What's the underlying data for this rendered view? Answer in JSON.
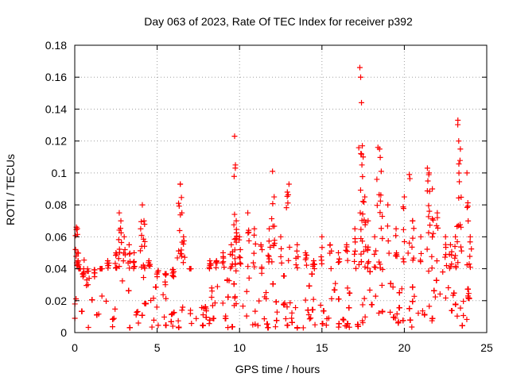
{
  "chart_data": {
    "type": "scatter",
    "title": "Day 063 of 2023, Rate Of TEC Index for receiver p392",
    "xlabel": "GPS time / hours",
    "ylabel": "ROTI / TECUs",
    "xlim": [
      0,
      25
    ],
    "ylim": [
      0,
      0.18
    ],
    "x_ticks": [
      "0",
      "5",
      "10",
      "15",
      "20",
      "25"
    ],
    "y_ticks": [
      "0",
      "0.02",
      "0.04",
      "0.06",
      "0.08",
      "0.1",
      "0.12",
      "0.14",
      "0.16",
      "0.18"
    ],
    "grid": true,
    "marker": "+",
    "color": "#ff0000",
    "series": [
      {
        "name": "ROTI",
        "x": [
          0.1,
          0.15,
          0.2,
          0.3,
          0.5,
          0.8,
          1.2,
          1.6,
          2.0,
          2.5,
          2.7,
          2.8,
          3.0,
          3.3,
          3.6,
          4.0,
          4.1,
          4.2,
          4.5,
          5.0,
          5.5,
          6.0,
          6.3,
          6.4,
          6.5,
          6.6,
          7.0,
          8.2,
          8.6,
          9.0,
          9.5,
          9.7,
          9.75,
          9.8,
          10.0,
          10.5,
          10.9,
          11.3,
          11.8,
          12.0,
          12.1,
          12.5,
          12.9,
          13.0,
          13.5,
          14.0,
          14.5,
          15.0,
          15.5,
          16.0,
          16.5,
          17.0,
          17.3,
          17.35,
          17.4,
          17.45,
          17.5,
          17.6,
          17.8,
          18.2,
          18.4,
          18.5,
          18.6,
          19.0,
          19.5,
          20.0,
          20.3,
          20.5,
          21.0,
          21.4,
          21.5,
          21.7,
          22.0,
          22.5,
          22.8,
          23.1,
          23.25,
          23.3,
          23.4,
          23.8,
          24.0
        ],
        "y": [
          0.066,
          0.05,
          0.045,
          0.04,
          0.035,
          0.03,
          0.035,
          0.04,
          0.045,
          0.05,
          0.075,
          0.07,
          0.06,
          0.055,
          0.05,
          0.065,
          0.08,
          0.07,
          0.045,
          0.035,
          0.03,
          0.035,
          0.081,
          0.093,
          0.075,
          0.06,
          0.04,
          0.045,
          0.045,
          0.05,
          0.055,
          0.123,
          0.105,
          0.07,
          0.06,
          0.075,
          0.065,
          0.055,
          0.065,
          0.101,
          0.085,
          0.06,
          0.088,
          0.093,
          0.055,
          0.05,
          0.045,
          0.06,
          0.055,
          0.05,
          0.055,
          0.065,
          0.166,
          0.16,
          0.144,
          0.117,
          0.11,
          0.085,
          0.07,
          0.06,
          0.116,
          0.115,
          0.101,
          0.08,
          0.065,
          0.085,
          0.099,
          0.07,
          0.06,
          0.103,
          0.1,
          0.09,
          0.075,
          0.06,
          0.055,
          0.06,
          0.133,
          0.12,
          0.115,
          0.1,
          0.06
        ]
      }
    ],
    "background_band": "dense points spanning 0.003-0.04 across 0-24 h"
  }
}
